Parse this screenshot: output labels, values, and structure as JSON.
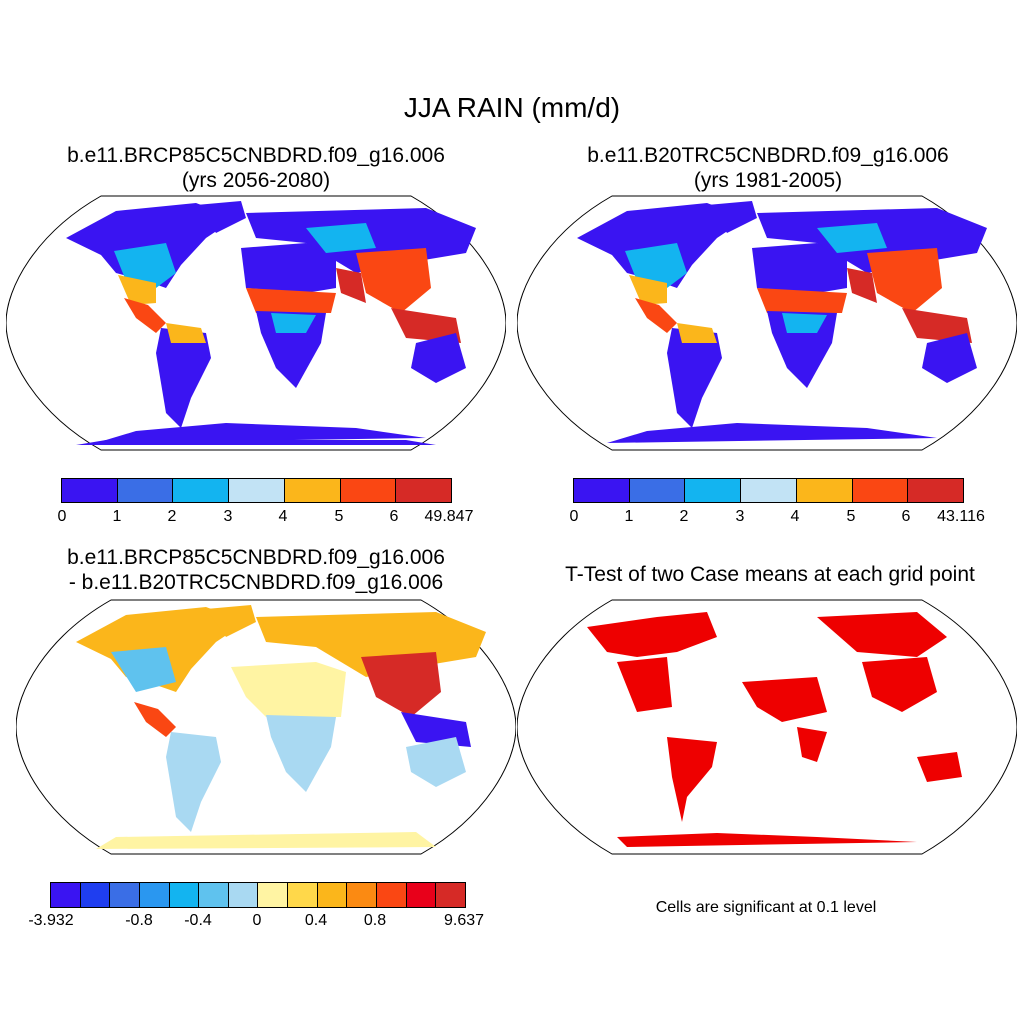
{
  "title": "JJA RAIN (mm/d)",
  "panels": {
    "future": {
      "title_line1": "b.e11.BRCP85C5CNBDRD.f09_g16.006",
      "title_line2": "(yrs 2056-2080)",
      "colorbar": {
        "colors": [
          "#3a14f2",
          "#3a6ee6",
          "#13b4f0",
          "#c2e3f5",
          "#fbb61b",
          "#fa4713",
          "#d62a26"
        ],
        "labels": [
          "0",
          "1",
          "2",
          "3",
          "4",
          "5",
          "6",
          "49.847"
        ]
      }
    },
    "historical": {
      "title_line1": "b.e11.B20TRC5CNBDRD.f09_g16.006",
      "title_line2": "(yrs 1981-2005)",
      "colorbar": {
        "colors": [
          "#3a14f2",
          "#3a6ee6",
          "#13b4f0",
          "#c2e3f5",
          "#fbb61b",
          "#fa4713",
          "#d62a26"
        ],
        "labels": [
          "0",
          "1",
          "2",
          "3",
          "4",
          "5",
          "6",
          "43.116"
        ]
      }
    },
    "difference": {
      "title_line1": "b.e11.BRCP85C5CNBDRD.f09_g16.006",
      "title_line2": "- b.e11.B20TRC5CNBDRD.f09_g16.006",
      "colorbar": {
        "colors": [
          "#3a14f2",
          "#1f3ef0",
          "#3a6ee6",
          "#2a97f0",
          "#13b4f0",
          "#5fc2ee",
          "#a9d9f2",
          "#fff4a3",
          "#ffd84a",
          "#fbb61b",
          "#fb8a12",
          "#fa4713",
          "#e8001a",
          "#d62a26"
        ],
        "labels": [
          "-3.932",
          "-0.8",
          "-0.4",
          "0",
          "0.4",
          "0.8",
          "9.637"
        ]
      }
    },
    "ttest": {
      "title": "T-Test of two Case means at each grid point",
      "note": "Cells are significant at 0.1 level",
      "color": "#ee0000"
    }
  }
}
